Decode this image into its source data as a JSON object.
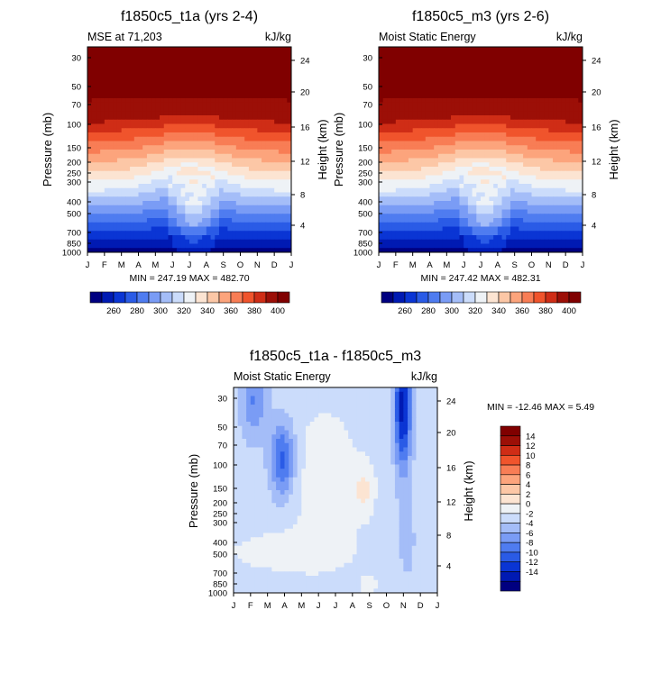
{
  "chart_data": [
    {
      "type": "heatmap",
      "title": "f1850c5_t1a (yrs 2-4)",
      "left_label": "MSE at 71,203",
      "right_label": "kJ/kg",
      "xlabel": "",
      "ylabel": "Pressure (mb)",
      "ylabel_right": "Height (km)",
      "x_ticks": [
        "J",
        "F",
        "M",
        "A",
        "M",
        "J",
        "J",
        "A",
        "S",
        "O",
        "N",
        "D",
        "J"
      ],
      "y_ticks": [
        "30",
        "50",
        "70",
        "100",
        "150",
        "200",
        "250",
        "300",
        "400",
        "500",
        "700",
        "850",
        "1000"
      ],
      "y_ticks_right": [
        "24",
        "20",
        "16",
        "12",
        "8",
        "4"
      ],
      "stats": "MIN = 247.19 MAX = 482.70",
      "levels": [
        260,
        270,
        280,
        290,
        300,
        310,
        320,
        330,
        340,
        350,
        360,
        370,
        380,
        390,
        400
      ],
      "colorbar_labels": [
        "260",
        "280",
        "300",
        "320",
        "340",
        "360",
        "380",
        "400"
      ],
      "colors": [
        "#000080",
        "#001ab3",
        "#0a35d4",
        "#2a5be6",
        "#4f7cf0",
        "#7a9cf5",
        "#a4bdf8",
        "#cbdcfb",
        "#eef2f6",
        "#fce4d2",
        "#fcc7a6",
        "#fca47c",
        "#f87d55",
        "#f0542c",
        "#cf2d16",
        "#9c0f07",
        "#800000"
      ]
    },
    {
      "type": "heatmap",
      "title": "f1850c5_m3 (yrs 2-6)",
      "left_label": "Moist Static Energy",
      "right_label": "kJ/kg",
      "xlabel": "",
      "ylabel": "Pressure (mb)",
      "ylabel_right": "Height (km)",
      "x_ticks": [
        "J",
        "F",
        "M",
        "A",
        "M",
        "J",
        "J",
        "A",
        "S",
        "O",
        "N",
        "D",
        "J"
      ],
      "y_ticks": [
        "30",
        "50",
        "70",
        "100",
        "150",
        "200",
        "250",
        "300",
        "400",
        "500",
        "700",
        "850",
        "1000"
      ],
      "y_ticks_right": [
        "24",
        "20",
        "16",
        "12",
        "8",
        "4"
      ],
      "stats": "MIN = 247.42 MAX = 482.31",
      "levels": [
        260,
        270,
        280,
        290,
        300,
        310,
        320,
        330,
        340,
        350,
        360,
        370,
        380,
        390,
        400
      ],
      "colorbar_labels": [
        "260",
        "280",
        "300",
        "320",
        "340",
        "360",
        "380",
        "400"
      ],
      "colors": [
        "#000080",
        "#001ab3",
        "#0a35d4",
        "#2a5be6",
        "#4f7cf0",
        "#7a9cf5",
        "#a4bdf8",
        "#cbdcfb",
        "#eef2f6",
        "#fce4d2",
        "#fcc7a6",
        "#fca47c",
        "#f87d55",
        "#f0542c",
        "#cf2d16",
        "#9c0f07",
        "#800000"
      ]
    },
    {
      "type": "heatmap",
      "title": "f1850c5_t1a - f1850c5_m3",
      "left_label": "Moist Static Energy",
      "right_label": "kJ/kg",
      "xlabel": "",
      "ylabel": "Pressure (mb)",
      "ylabel_right": "Height (km)",
      "x_ticks": [
        "J",
        "F",
        "M",
        "A",
        "M",
        "J",
        "J",
        "A",
        "S",
        "O",
        "N",
        "D",
        "J"
      ],
      "y_ticks": [
        "30",
        "50",
        "70",
        "100",
        "150",
        "200",
        "250",
        "300",
        "400",
        "500",
        "700",
        "850",
        "1000"
      ],
      "y_ticks_right": [
        "24",
        "20",
        "16",
        "12",
        "8",
        "4"
      ],
      "stats": "MIN = -12.46 MAX =   5.49",
      "levels": [
        -14,
        -12,
        -10,
        -8,
        -6,
        -4,
        -2,
        0,
        2,
        4,
        6,
        8,
        10,
        12,
        14
      ],
      "colorbar_labels": [
        "14",
        "12",
        "10",
        "8",
        "6",
        "4",
        "2",
        "0",
        "-2",
        "-4",
        "-6",
        "-8",
        "-10",
        "-12",
        "-14"
      ],
      "colors": [
        "#000080",
        "#001ab3",
        "#0a35d4",
        "#2a5be6",
        "#4f7cf0",
        "#7a9cf5",
        "#a4bdf8",
        "#cbdcfb",
        "#eef2f6",
        "#fce4d2",
        "#fcc7a6",
        "#fca47c",
        "#f87d55",
        "#f0542c",
        "#cf2d16",
        "#9c0f07",
        "#800000"
      ]
    }
  ]
}
